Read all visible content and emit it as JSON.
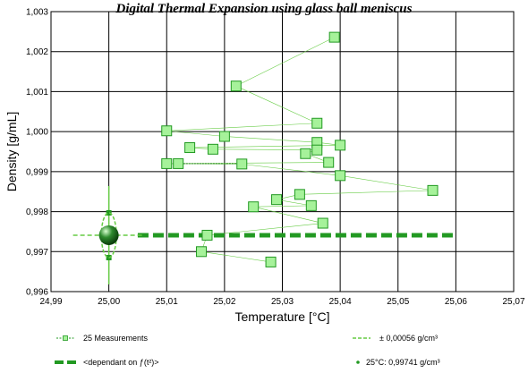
{
  "chart_data": {
    "type": "scatter",
    "title": "Digital Thermal Expansion using glass ball meniscus",
    "xlabel": "Temperature [°C]",
    "ylabel": "Density [g/mL]",
    "xlim": [
      24.99,
      25.07
    ],
    "ylim": [
      0.996,
      1.003
    ],
    "x_ticks": [
      "24,99",
      "25,00",
      "25,01",
      "25,02",
      "25,03",
      "25,04",
      "25,05",
      "25,06",
      "25,07"
    ],
    "y_ticks": [
      "0,996",
      "0,997",
      "0,998",
      "0,999",
      "1,000",
      "1,001",
      "1,002",
      "1,003"
    ],
    "grid": true,
    "colors": {
      "series": "#66cc44",
      "series_dark": "#229922",
      "marker_fill": "#a6f29a",
      "ball": "#2e8b2e",
      "dotted": "#1a6b1a"
    },
    "measurements": {
      "name": "25 Measurements",
      "points": [
        {
          "x": 25.039,
          "y": 1.00236
        },
        {
          "x": 25.022,
          "y": 1.00114
        },
        {
          "x": 25.036,
          "y": 1.00021
        },
        {
          "x": 25.01,
          "y": 1.00002
        },
        {
          "x": 25.02,
          "y": 0.99988
        },
        {
          "x": 25.036,
          "y": 0.99973
        },
        {
          "x": 25.04,
          "y": 0.99966
        },
        {
          "x": 25.014,
          "y": 0.9996
        },
        {
          "x": 25.018,
          "y": 0.99956
        },
        {
          "x": 25.036,
          "y": 0.99954
        },
        {
          "x": 25.034,
          "y": 0.99945
        },
        {
          "x": 25.038,
          "y": 0.99923
        },
        {
          "x": 25.01,
          "y": 0.9992
        },
        {
          "x": 25.012,
          "y": 0.9992
        },
        {
          "x": 25.023,
          "y": 0.99919
        },
        {
          "x": 25.04,
          "y": 0.9989
        },
        {
          "x": 25.056,
          "y": 0.99853
        },
        {
          "x": 25.033,
          "y": 0.99843
        },
        {
          "x": 25.029,
          "y": 0.9983
        },
        {
          "x": 25.035,
          "y": 0.99815
        },
        {
          "x": 25.025,
          "y": 0.99812
        },
        {
          "x": 25.037,
          "y": 0.99771
        },
        {
          "x": 25.017,
          "y": 0.99741
        },
        {
          "x": 25.016,
          "y": 0.997
        },
        {
          "x": 25.028,
          "y": 0.99674
        }
      ]
    },
    "dotted_reference": {
      "x": [
        25.012,
        25.023
      ],
      "y": 0.9992
    },
    "dependant_line": {
      "name": "<dependant on ƒ(t²)>",
      "x": [
        25.005,
        25.06
      ],
      "y": 0.99741
    },
    "tolerance": {
      "name": "± 0,00056 g/cm³",
      "center_x": 25.0,
      "center_y": 0.99741,
      "dx": 0.0013,
      "dy": 0.00056
    },
    "reference_point": {
      "name": "25°C: 0,99741 g/cm³",
      "x": 25.0,
      "y": 0.99741
    },
    "legend": {
      "placement": "bottom",
      "entries": [
        {
          "key": "measurements",
          "label": "25 Measurements"
        },
        {
          "key": "tolerance",
          "label": "± 0,00056 g/cm³"
        },
        {
          "key": "dependant",
          "label": "<dependant on ƒ(t²)>"
        },
        {
          "key": "reference",
          "label": "25°C: 0,99741 g/cm³"
        }
      ]
    }
  }
}
